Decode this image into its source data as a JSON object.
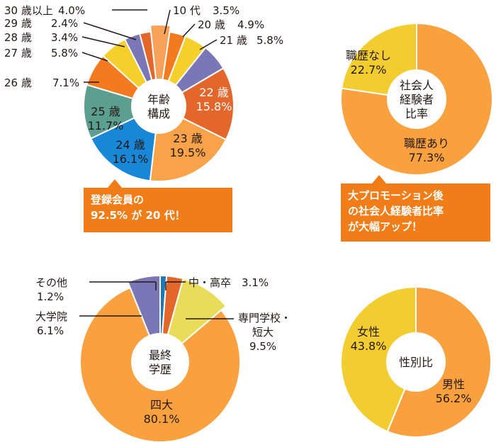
{
  "chart_data": [
    {
      "type": "pie",
      "id": "age",
      "title": "年齢構成",
      "title_lines": [
        "年齢",
        "構成"
      ],
      "slices": [
        {
          "label": "30 歳以上",
          "value": 4.0,
          "display": "4.0%",
          "color": "#f7a25a"
        },
        {
          "label": "10 代",
          "value": 3.5,
          "display": "3.5%",
          "color": "#f47a20"
        },
        {
          "label": "20 歳",
          "value": 4.9,
          "display": "4.9%",
          "color": "#f5cf2a"
        },
        {
          "label": "21 歳",
          "value": 5.8,
          "display": "5.8%",
          "color": "#7b76b5"
        },
        {
          "label": "22 歳",
          "value": 15.8,
          "display": "15.8%",
          "color": "#e3662b"
        },
        {
          "label": "23 歳",
          "value": 19.5,
          "display": "19.5%",
          "color": "#f8a24a"
        },
        {
          "label": "24 歳",
          "value": 16.1,
          "display": "16.1%",
          "color": "#1987d8"
        },
        {
          "label": "25 歳",
          "value": 11.7,
          "display": "11.7%",
          "color": "#5c9e8f"
        },
        {
          "label": "26 歳",
          "value": 7.1,
          "display": "7.1%",
          "color": "#f47a20"
        },
        {
          "label": "27 歳",
          "value": 5.8,
          "display": "5.8%",
          "color": "#f5cf2a"
        },
        {
          "label": "28 歳",
          "value": 3.4,
          "display": "3.4%",
          "color": "#7b76b5"
        },
        {
          "label": "29 歳",
          "value": 2.4,
          "display": "2.4%",
          "color": "#e3662b"
        }
      ]
    },
    {
      "type": "pie",
      "id": "career",
      "title": "社会人経験者比率",
      "title_lines": [
        "社会人",
        "経験者",
        "比率"
      ],
      "slices": [
        {
          "label": "職歴あり",
          "value": 77.3,
          "display": "77.3%",
          "color": "#f8a13e"
        },
        {
          "label": "職歴なし",
          "value": 22.7,
          "display": "22.7%",
          "color": "#f3cd2f"
        }
      ]
    },
    {
      "type": "pie",
      "id": "education",
      "title": "最終学歴",
      "title_lines": [
        "最終",
        "学歴"
      ],
      "slices": [
        {
          "label": "その他",
          "value": 1.2,
          "display": "1.2%",
          "color": "#1f77b4"
        },
        {
          "label": "中・高卒",
          "value": 3.1,
          "display": "3.1%",
          "color": "#e3662b"
        },
        {
          "label": "専門学校・短大",
          "value": 9.5,
          "display": "9.5%",
          "color": "#e8dc5a"
        },
        {
          "label": "四大",
          "value": 80.1,
          "display": "80.1%",
          "color": "#f8a13e"
        },
        {
          "label": "大学院",
          "value": 6.1,
          "display": "6.1%",
          "color": "#7b76b5"
        }
      ]
    },
    {
      "type": "pie",
      "id": "gender",
      "title": "性別比",
      "title_lines": [
        "性別比"
      ],
      "slices": [
        {
          "label": "男性",
          "value": 56.2,
          "display": "56.2%",
          "color": "#f8a13e"
        },
        {
          "label": "女性",
          "value": 43.8,
          "display": "43.8%",
          "color": "#f3cd2f"
        }
      ]
    }
  ],
  "callouts": {
    "age": [
      "登録会員の",
      "92.5% が 20 代！"
    ],
    "career": [
      "大プロモーション後",
      "の社会人経験者比率",
      "が大幅アップ！"
    ]
  },
  "education_labels": {
    "other": [
      "その他",
      "1.2%"
    ],
    "highschool": "中・高卒　3.1%",
    "vocational": [
      "専門学校・",
      "短大",
      "9.5%"
    ],
    "grad": [
      "大学院",
      "6.1%"
    ]
  }
}
